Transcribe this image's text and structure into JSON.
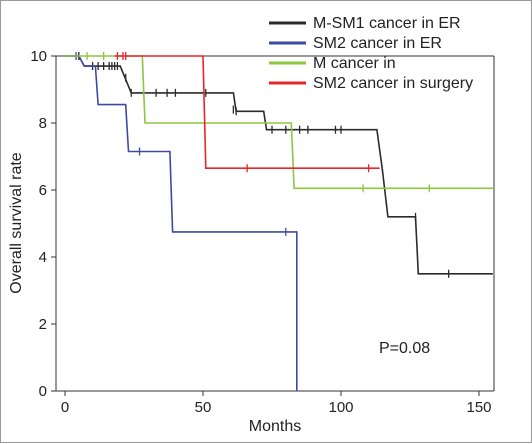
{
  "chart_data": {
    "type": "line",
    "xlabel": "Months",
    "ylabel": "Overall survival rate",
    "xlim": [
      0,
      155
    ],
    "ylim": [
      0,
      10
    ],
    "x_ticks": [
      0,
      50,
      100,
      150
    ],
    "y_ticks": [
      0,
      2,
      4,
      6,
      8,
      10
    ],
    "legend_position": "top-right",
    "annotation": "P=0.08",
    "series": [
      {
        "name": "M-SM1 cancer in ER",
        "color": "#2b2b2b",
        "steps": [
          [
            0,
            10
          ],
          [
            5,
            10
          ],
          [
            7,
            9.7
          ],
          [
            20,
            9.7
          ],
          [
            22,
            9.3
          ],
          [
            24,
            8.9
          ],
          [
            61,
            8.9
          ],
          [
            62,
            8.35
          ],
          [
            72,
            8.35
          ],
          [
            73,
            7.8
          ],
          [
            113,
            7.8
          ],
          [
            115,
            6.6
          ],
          [
            117,
            5.2
          ],
          [
            127,
            5.2
          ],
          [
            128,
            3.5
          ],
          [
            155,
            3.5
          ]
        ],
        "censored": [
          [
            5,
            10
          ],
          [
            10,
            9.7
          ],
          [
            12,
            9.7
          ],
          [
            14,
            9.7
          ],
          [
            16,
            9.7
          ],
          [
            17,
            9.7
          ],
          [
            18,
            9.7
          ],
          [
            19,
            9.7
          ],
          [
            22,
            9.35
          ],
          [
            24,
            8.9
          ],
          [
            33,
            8.9
          ],
          [
            37,
            8.9
          ],
          [
            40,
            8.9
          ],
          [
            51,
            8.9
          ],
          [
            61,
            8.4
          ],
          [
            62,
            8.35
          ],
          [
            75,
            7.8
          ],
          [
            80,
            7.8
          ],
          [
            85,
            7.8
          ],
          [
            88,
            7.8
          ],
          [
            98,
            7.8
          ],
          [
            100,
            7.8
          ],
          [
            127,
            5.2
          ],
          [
            139,
            3.5
          ]
        ]
      },
      {
        "name": "SM2 cancer in ER",
        "color": "#3c4aa0",
        "steps": [
          [
            0,
            10
          ],
          [
            5,
            10
          ],
          [
            7,
            9.7
          ],
          [
            11,
            9.7
          ],
          [
            12,
            8.55
          ],
          [
            22,
            8.55
          ],
          [
            23,
            7.15
          ],
          [
            38,
            7.15
          ],
          [
            39,
            4.75
          ],
          [
            84,
            4.75
          ],
          [
            84,
            0
          ]
        ],
        "censored": [
          [
            4,
            10
          ],
          [
            27,
            7.15
          ],
          [
            80,
            4.75
          ]
        ]
      },
      {
        "name": "M cancer in",
        "color": "#8dc63f",
        "steps": [
          [
            0,
            10
          ],
          [
            28,
            10
          ],
          [
            29,
            8
          ],
          [
            82,
            8
          ],
          [
            83,
            6.05
          ],
          [
            155,
            6.05
          ]
        ],
        "censored": [
          [
            8,
            10
          ],
          [
            14,
            10
          ],
          [
            108,
            6.05
          ],
          [
            132,
            6.05
          ]
        ]
      },
      {
        "name": "SM2 cancer in surgery",
        "color": "#e8262a",
        "steps": [
          [
            18,
            10
          ],
          [
            50,
            10
          ],
          [
            51,
            6.65
          ],
          [
            114,
            6.65
          ]
        ],
        "censored": [
          [
            19,
            10
          ],
          [
            21,
            10
          ],
          [
            22,
            10
          ],
          [
            66,
            6.65
          ],
          [
            110,
            6.65
          ]
        ]
      }
    ]
  }
}
